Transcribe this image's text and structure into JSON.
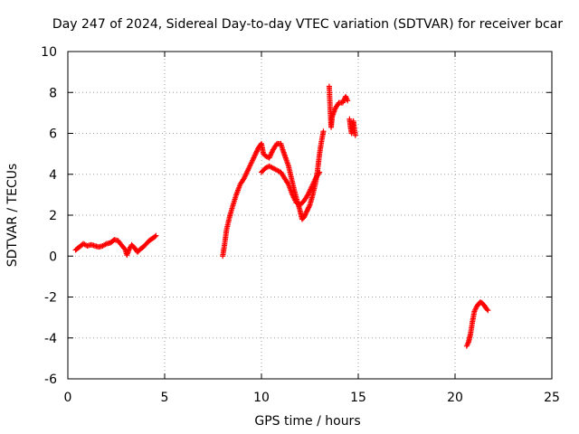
{
  "chart_data": {
    "type": "scatter",
    "title": "Day 247 of 2024, Sidereal Day-to-day VTEC variation (SDTVAR) for receiver bcar",
    "xlabel": "GPS time / hours",
    "ylabel": "SDTVAR / TECUs",
    "xlim": [
      0,
      25
    ],
    "ylim": [
      -6,
      10
    ],
    "xticks": [
      0,
      5,
      10,
      15,
      20,
      25
    ],
    "yticks": [
      -6,
      -4,
      -2,
      0,
      2,
      4,
      6,
      8,
      10
    ],
    "grid": true,
    "marker": "+",
    "color": "#ff0000",
    "series": [
      {
        "segments": [
          [
            [
              0.4,
              0.3
            ],
            [
              0.6,
              0.45
            ],
            [
              0.8,
              0.6
            ],
            [
              1.0,
              0.5
            ],
            [
              1.2,
              0.55
            ],
            [
              1.4,
              0.5
            ],
            [
              1.6,
              0.45
            ],
            [
              1.8,
              0.5
            ],
            [
              2.0,
              0.6
            ],
            [
              2.2,
              0.65
            ],
            [
              2.4,
              0.8
            ],
            [
              2.6,
              0.75
            ],
            [
              2.8,
              0.5
            ],
            [
              2.95,
              0.35
            ],
            [
              3.05,
              0.05
            ],
            [
              3.15,
              0.3
            ],
            [
              3.3,
              0.55
            ],
            [
              3.45,
              0.4
            ],
            [
              3.6,
              0.2
            ],
            [
              3.75,
              0.35
            ],
            [
              3.9,
              0.45
            ],
            [
              4.05,
              0.6
            ],
            [
              4.2,
              0.75
            ],
            [
              4.35,
              0.85
            ],
            [
              4.5,
              0.95
            ],
            [
              4.55,
              1.0
            ]
          ],
          [
            [
              8.0,
              0.0
            ],
            [
              8.1,
              0.6
            ],
            [
              8.2,
              1.3
            ],
            [
              8.35,
              1.9
            ],
            [
              8.5,
              2.4
            ],
            [
              8.7,
              3.0
            ],
            [
              8.9,
              3.5
            ],
            [
              9.1,
              3.8
            ],
            [
              9.3,
              4.2
            ],
            [
              9.5,
              4.6
            ],
            [
              9.7,
              5.0
            ],
            [
              9.85,
              5.3
            ],
            [
              10.0,
              5.5
            ],
            [
              10.1,
              5.0
            ],
            [
              10.2,
              4.9
            ],
            [
              10.4,
              4.8
            ],
            [
              10.6,
              5.2
            ],
            [
              10.8,
              5.5
            ],
            [
              11.0,
              5.5
            ],
            [
              11.1,
              5.2
            ],
            [
              11.25,
              4.8
            ],
            [
              11.4,
              4.4
            ],
            [
              11.55,
              3.8
            ],
            [
              11.7,
              3.2
            ],
            [
              11.85,
              2.7
            ],
            [
              12.0,
              2.2
            ],
            [
              12.1,
              1.8
            ],
            [
              12.2,
              1.9
            ],
            [
              12.35,
              2.2
            ],
            [
              12.5,
              2.5
            ],
            [
              12.65,
              3.0
            ],
            [
              12.8,
              3.6
            ],
            [
              12.9,
              4.2
            ],
            [
              13.0,
              5.0
            ],
            [
              13.1,
              5.6
            ],
            [
              13.2,
              6.1
            ]
          ],
          [
            [
              10.0,
              4.1
            ],
            [
              10.2,
              4.3
            ],
            [
              10.4,
              4.4
            ],
            [
              10.6,
              4.3
            ],
            [
              10.8,
              4.2
            ],
            [
              11.0,
              4.1
            ],
            [
              11.2,
              3.8
            ],
            [
              11.4,
              3.5
            ],
            [
              11.6,
              3.0
            ],
            [
              11.8,
              2.6
            ],
            [
              12.0,
              2.5
            ],
            [
              12.2,
              2.7
            ],
            [
              12.4,
              3.0
            ],
            [
              12.6,
              3.4
            ],
            [
              12.8,
              3.8
            ],
            [
              13.0,
              4.1
            ]
          ],
          [
            [
              13.5,
              8.3
            ],
            [
              13.55,
              7.2
            ],
            [
              13.6,
              6.3
            ],
            [
              13.65,
              6.8
            ],
            [
              13.8,
              7.2
            ],
            [
              14.0,
              7.5
            ],
            [
              14.2,
              7.5
            ],
            [
              14.35,
              7.8
            ],
            [
              14.45,
              7.6
            ]
          ],
          [
            [
              14.55,
              6.7
            ],
            [
              14.6,
              6.3
            ],
            [
              14.65,
              6.0
            ],
            [
              14.75,
              6.6
            ],
            [
              14.8,
              6.2
            ],
            [
              14.85,
              5.9
            ]
          ],
          [
            [
              20.6,
              -4.4
            ],
            [
              20.7,
              -4.2
            ],
            [
              20.8,
              -3.8
            ],
            [
              20.9,
              -3.2
            ],
            [
              21.0,
              -2.7
            ],
            [
              21.1,
              -2.5
            ],
            [
              21.2,
              -2.35
            ],
            [
              21.3,
              -2.25
            ],
            [
              21.4,
              -2.3
            ],
            [
              21.5,
              -2.4
            ],
            [
              21.6,
              -2.55
            ],
            [
              21.7,
              -2.65
            ]
          ]
        ]
      }
    ]
  }
}
